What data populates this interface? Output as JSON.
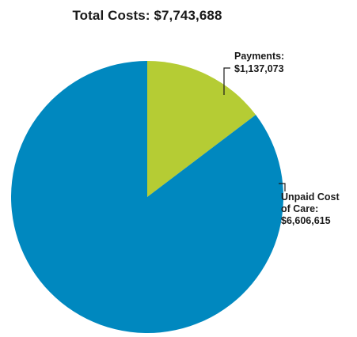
{
  "chart_data": {
    "type": "pie",
    "title": "Total Costs: $7,743,688",
    "slices": [
      {
        "name": "Payments",
        "value": 1137073,
        "label_lines": [
          "Payments:",
          "$1,137,073"
        ],
        "color": "#b5cc34"
      },
      {
        "name": "Unpaid Cost of Care",
        "value": 6606615,
        "label_lines": [
          "Unpaid Cost",
          "of Care:",
          "$6,606,615"
        ],
        "color": "#0088bf"
      }
    ]
  }
}
